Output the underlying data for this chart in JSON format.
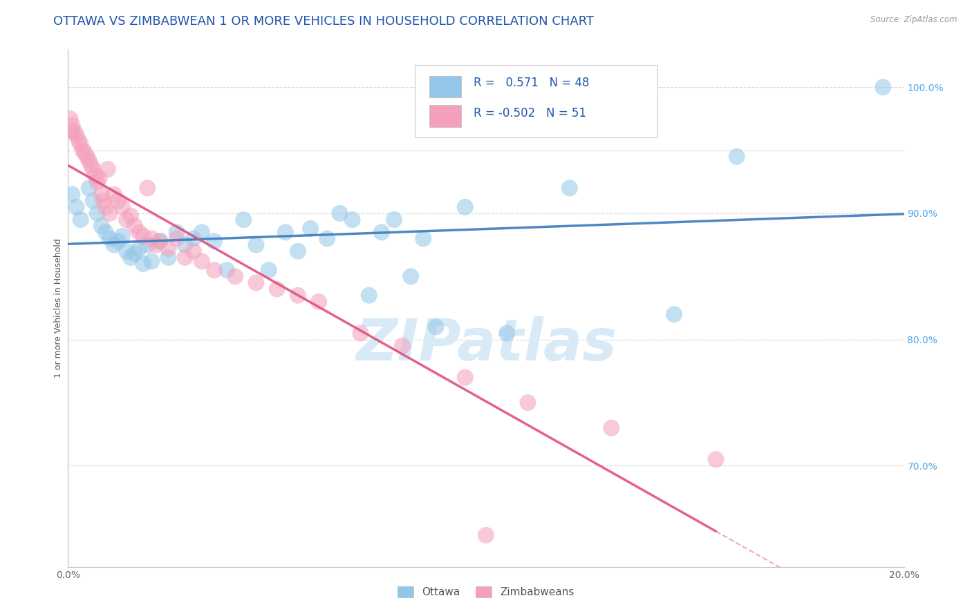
{
  "title": "OTTAWA VS ZIMBABWEAN 1 OR MORE VEHICLES IN HOUSEHOLD CORRELATION CHART",
  "source": "Source: ZipAtlas.com",
  "ylabel": "1 or more Vehicles in Household",
  "R_ottawa": 0.571,
  "N_ottawa": 48,
  "R_zimbabwean": -0.502,
  "N_zimbabwean": 51,
  "ottawa_color": "#93c6e8",
  "zimbabwean_color": "#f4a0ba",
  "ottawa_line_color": "#3a7bbf",
  "zimbabwean_line_color": "#e05080",
  "background_color": "#ffffff",
  "legend_label_ottawa": "Ottawa",
  "legend_label_zimbabwean": "Zimbabweans",
  "ottawa_scatter_x": [
    0.1,
    0.2,
    0.3,
    0.5,
    0.6,
    0.7,
    0.8,
    0.9,
    1.0,
    1.1,
    1.2,
    1.3,
    1.4,
    1.5,
    1.6,
    1.7,
    1.8,
    1.9,
    2.0,
    2.2,
    2.4,
    2.6,
    2.8,
    3.0,
    3.2,
    3.5,
    3.8,
    4.2,
    4.5,
    4.8,
    5.2,
    5.5,
    5.8,
    6.2,
    6.5,
    6.8,
    7.2,
    7.5,
    7.8,
    8.2,
    8.5,
    8.8,
    9.5,
    10.5,
    12.0,
    14.5,
    16.0,
    19.5
  ],
  "ottawa_scatter_y": [
    91.5,
    90.5,
    89.5,
    92.0,
    91.0,
    90.0,
    89.0,
    88.5,
    88.0,
    87.5,
    87.8,
    88.2,
    87.0,
    86.5,
    86.8,
    87.2,
    86.0,
    87.5,
    86.2,
    87.8,
    86.5,
    88.5,
    87.5,
    88.0,
    88.5,
    87.8,
    85.5,
    89.5,
    87.5,
    85.5,
    88.5,
    87.0,
    88.8,
    88.0,
    90.0,
    89.5,
    83.5,
    88.5,
    89.5,
    85.0,
    88.0,
    81.0,
    90.5,
    80.5,
    92.0,
    82.0,
    94.5,
    100.0
  ],
  "zimbabwean_scatter_x": [
    0.05,
    0.1,
    0.15,
    0.2,
    0.25,
    0.3,
    0.35,
    0.4,
    0.45,
    0.5,
    0.55,
    0.6,
    0.65,
    0.7,
    0.75,
    0.8,
    0.85,
    0.9,
    0.95,
    1.0,
    1.1,
    1.2,
    1.3,
    1.4,
    1.5,
    1.6,
    1.7,
    1.8,
    1.9,
    2.0,
    2.1,
    2.2,
    2.4,
    2.6,
    2.8,
    3.0,
    3.2,
    3.5,
    4.0,
    4.5,
    5.0,
    5.5,
    6.0,
    7.0,
    8.0,
    9.5,
    11.0,
    13.0,
    15.5,
    0.08,
    10.0
  ],
  "zimbabwean_scatter_y": [
    97.5,
    97.0,
    96.5,
    96.2,
    95.8,
    95.5,
    95.0,
    94.8,
    94.5,
    94.2,
    93.8,
    93.5,
    93.0,
    92.5,
    92.8,
    91.5,
    91.0,
    90.5,
    93.5,
    90.0,
    91.5,
    91.0,
    90.5,
    89.5,
    89.8,
    89.0,
    88.5,
    88.2,
    92.0,
    88.0,
    87.5,
    87.8,
    87.2,
    88.0,
    86.5,
    87.0,
    86.2,
    85.5,
    85.0,
    84.5,
    84.0,
    83.5,
    83.0,
    80.5,
    79.5,
    77.0,
    75.0,
    73.0,
    70.5,
    96.5,
    64.5
  ],
  "xlim": [
    0.0,
    20.0
  ],
  "ylim": [
    62.0,
    103.0
  ],
  "ytick_vals": [
    70.0,
    80.0,
    90.0,
    100.0
  ],
  "title_fontsize": 13,
  "axis_label_fontsize": 9,
  "tick_fontsize": 10,
  "watermark": "ZIPatlas",
  "watermark_color": "#d8eaf6",
  "watermark_fontsize": 60,
  "grid_color": "#cccccc",
  "grid_style": "--"
}
